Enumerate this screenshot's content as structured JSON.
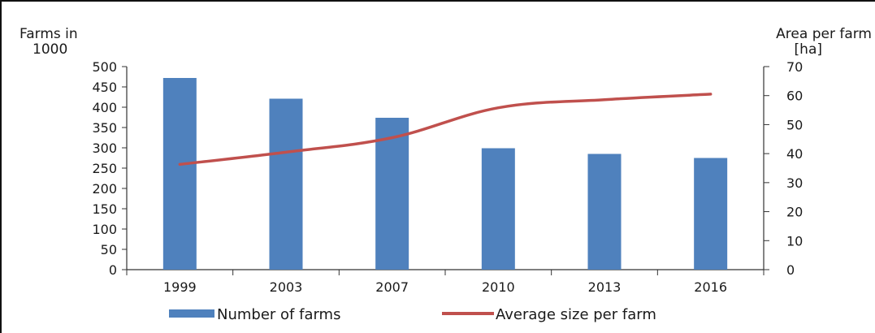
{
  "chart_data": {
    "type": "bar",
    "categories": [
      "1999",
      "2003",
      "2007",
      "2010",
      "2013",
      "2016"
    ],
    "series": [
      {
        "name": "Number of farms",
        "type": "bar",
        "axis": "left",
        "color": "#4f81bd",
        "values": [
          472,
          421,
          374,
          299,
          285,
          275
        ]
      },
      {
        "name": "Average size per farm",
        "type": "line",
        "axis": "right",
        "color": "#c0504d",
        "values": [
          36.3,
          40.5,
          45.5,
          55.8,
          58.6,
          60.5
        ]
      }
    ],
    "ylabel_left": [
      "Farms in",
      "1000"
    ],
    "ylabel_right": [
      "Area per farm",
      "[ha]"
    ],
    "ylim_left": [
      0,
      500
    ],
    "yticks_left": [
      "0",
      "50",
      "100",
      "150",
      "200",
      "250",
      "300",
      "350",
      "400",
      "450",
      "500"
    ],
    "ylim_right": [
      0,
      70
    ],
    "yticks_right": [
      "0",
      "10",
      "20",
      "30",
      "40",
      "50",
      "60",
      "70"
    ],
    "grid": false,
    "legend_position": "bottom"
  }
}
